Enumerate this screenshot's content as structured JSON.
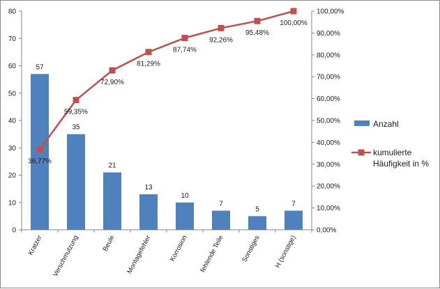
{
  "colors": {
    "bar": "#4F81BD",
    "line": "#C0504D",
    "axis": "#868686",
    "text": "#1a1a1a"
  },
  "chart_data": {
    "type": "bar",
    "categories": [
      "Kratzer",
      "Verschmutzung",
      "Beule",
      "Montagefehler",
      "Korrosion",
      "fehlende Teile",
      "Sonstiges",
      "H (sonstige)"
    ],
    "series": [
      {
        "name": "Anzahl",
        "type": "bar",
        "axis": "left",
        "values": [
          57,
          35,
          21,
          13,
          10,
          7,
          5,
          7
        ],
        "labels": [
          "57",
          "35",
          "21",
          "13",
          "10",
          "7",
          "5",
          "7"
        ]
      },
      {
        "name": "kumulierte Häufigkeit in %",
        "type": "line",
        "axis": "right",
        "values": [
          36.77,
          59.35,
          72.9,
          81.29,
          87.74,
          92.26,
          95.48,
          100.0
        ],
        "labels": [
          "36,77%",
          "59,35%",
          "72,90%",
          "81,29%",
          "87,74%",
          "92,26%",
          "95,48%",
          "100,00%"
        ]
      }
    ],
    "title": "",
    "xlabel": "",
    "ylabel": "",
    "ylim": [
      0,
      80
    ],
    "y_ticks": [
      "0",
      "10",
      "20",
      "30",
      "40",
      "50",
      "60",
      "70",
      "80"
    ],
    "y2lim": [
      0,
      100
    ],
    "y2_ticks": [
      "0,00%",
      "10,00%",
      "20,00%",
      "30,00%",
      "40,00%",
      "50,00%",
      "60,00%",
      "70,00%",
      "80,00%",
      "90,00%",
      "100,00%"
    ],
    "grid": false,
    "legend": "right",
    "legend_items": [
      "Anzahl",
      "kumulierte",
      "Häufigkeit in %"
    ]
  }
}
